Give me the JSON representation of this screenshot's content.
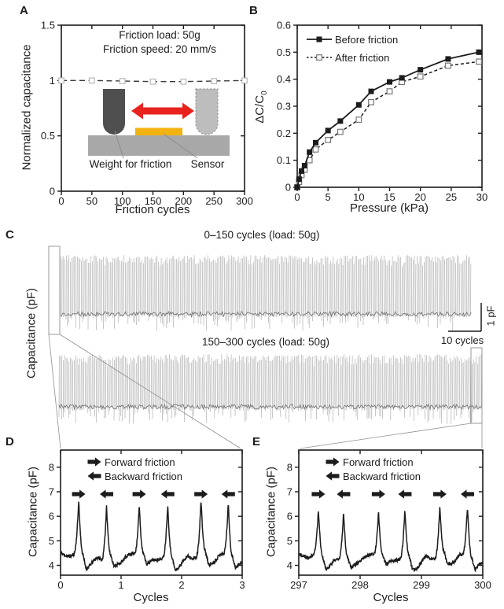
{
  "panels": {
    "a": "A",
    "b": "B",
    "c": "C",
    "d": "D",
    "e": "E"
  },
  "colors": {
    "ink": "#1c1c1c",
    "trace_gray": "#a3a3a3",
    "trace_dark": "#6f6f6f",
    "arrow_red": "#e8231e",
    "sensor_yellow": "#f3b312",
    "substrate_gray": "#a8a8a8",
    "weight_dark": "#4f4f4f",
    "weight_ghost": "#bdbdbd",
    "open_marker_gray": "#b8b8b8",
    "callout_gray": "#909090"
  },
  "chart_data": [
    {
      "panel": "A",
      "type": "line",
      "xlabel": "Friction cycles",
      "ylabel": "Normalized capacitance",
      "xlim": [
        0,
        300
      ],
      "ylim": [
        0,
        1.5
      ],
      "xticks": [
        0,
        50,
        100,
        150,
        200,
        250,
        300
      ],
      "yticks": [
        0,
        0.5,
        1,
        1.5
      ],
      "grid": false,
      "annotations": [
        "Friction load: 50g",
        "Friction speed: 20 mm/s"
      ],
      "series": [
        {
          "name": "normalized capacitance",
          "line": "dashed",
          "marker": "open-square",
          "x": [
            0,
            50,
            100,
            150,
            200,
            250,
            300
          ],
          "y": [
            1.0,
            1.0,
            0.995,
            0.99,
            0.99,
            0.995,
            1.0
          ]
        }
      ],
      "inset": {
        "labels": [
          "Weight for friction",
          "Sensor"
        ]
      }
    },
    {
      "panel": "B",
      "type": "line",
      "xlabel": "Pressure (kPa)",
      "ylabel_main": "ΔC/C",
      "ylabel_sub": "0",
      "xlim": [
        0,
        30
      ],
      "ylim": [
        0,
        0.6
      ],
      "xticks": [
        0,
        5,
        10,
        15,
        20,
        25,
        30
      ],
      "yticks": [
        0,
        0.1,
        0.2,
        0.3,
        0.4,
        0.5,
        0.6
      ],
      "grid": false,
      "legend": {
        "position": "top-left"
      },
      "series": [
        {
          "name": "Before friction",
          "line": "solid",
          "marker": "filled-square",
          "x": [
            0,
            0.3,
            0.7,
            1.2,
            2,
            3,
            5,
            7,
            10,
            12,
            15,
            17,
            20,
            24.5,
            29.5
          ],
          "y": [
            0,
            0.03,
            0.06,
            0.08,
            0.13,
            0.165,
            0.21,
            0.245,
            0.305,
            0.355,
            0.39,
            0.405,
            0.435,
            0.475,
            0.5
          ]
        },
        {
          "name": "After friction",
          "line": "dashed",
          "marker": "open-square",
          "x": [
            0,
            0.3,
            0.7,
            1.2,
            2,
            3,
            5,
            7,
            10,
            12,
            15,
            17,
            20,
            24.5,
            29.5
          ],
          "y": [
            0,
            0.02,
            0.045,
            0.065,
            0.1,
            0.14,
            0.175,
            0.205,
            0.25,
            0.315,
            0.355,
            0.39,
            0.41,
            0.45,
            0.465
          ]
        }
      ]
    },
    {
      "panel": "C",
      "type": "line-traces",
      "ylabel": "Capacitance (pF)",
      "traces": [
        {
          "title": "0–150 cycles (load: 50g)",
          "cycle_range": [
            0,
            150
          ],
          "load": "50g",
          "baseline_pF": 4.3,
          "peak_pF": 6.5
        },
        {
          "title": "150–300 cycles (load: 50g)",
          "cycle_range": [
            150,
            300
          ],
          "load": "50g",
          "baseline_pF": 4.3,
          "peak_pF": 6.4
        }
      ],
      "scalebar": {
        "y": "1 pF",
        "x": "10 cycles"
      }
    },
    {
      "panel": "D",
      "type": "line",
      "xlabel": "Cycles",
      "ylabel": "Capacitance (pF)",
      "xlim": [
        0,
        3
      ],
      "ylim": [
        3.6,
        8.7
      ],
      "xticks": [
        0,
        1,
        2,
        3
      ],
      "yticks": [
        4,
        5,
        6,
        7,
        8
      ],
      "legend": {
        "entries": [
          "Forward friction",
          "Backward friction"
        ]
      },
      "baseline": 4.35,
      "peaks": [
        {
          "x": 0.3,
          "y": 6.55,
          "dir": "forward"
        },
        {
          "x": 0.76,
          "y": 6.6,
          "dir": "backward"
        },
        {
          "x": 1.3,
          "y": 6.45,
          "dir": "forward"
        },
        {
          "x": 1.77,
          "y": 6.5,
          "dir": "backward"
        },
        {
          "x": 2.32,
          "y": 6.6,
          "dir": "forward"
        },
        {
          "x": 2.77,
          "y": 6.6,
          "dir": "backward"
        }
      ]
    },
    {
      "panel": "E",
      "type": "line",
      "xlabel": "Cycles",
      "ylabel": "Capacitance (pF)",
      "xlim": [
        297,
        300
      ],
      "ylim": [
        3.6,
        8.7
      ],
      "xticks": [
        297,
        298,
        299,
        300
      ],
      "yticks": [
        4,
        5,
        6,
        7,
        8
      ],
      "legend": {
        "entries": [
          "Forward friction",
          "Backward friction"
        ]
      },
      "baseline": 4.32,
      "peaks": [
        {
          "x": 297.32,
          "y": 6.2,
          "dir": "forward"
        },
        {
          "x": 297.73,
          "y": 6.35,
          "dir": "backward"
        },
        {
          "x": 298.3,
          "y": 6.15,
          "dir": "forward"
        },
        {
          "x": 298.73,
          "y": 6.3,
          "dir": "backward"
        },
        {
          "x": 299.3,
          "y": 6.35,
          "dir": "forward"
        },
        {
          "x": 299.75,
          "y": 6.4,
          "dir": "backward"
        }
      ]
    }
  ]
}
